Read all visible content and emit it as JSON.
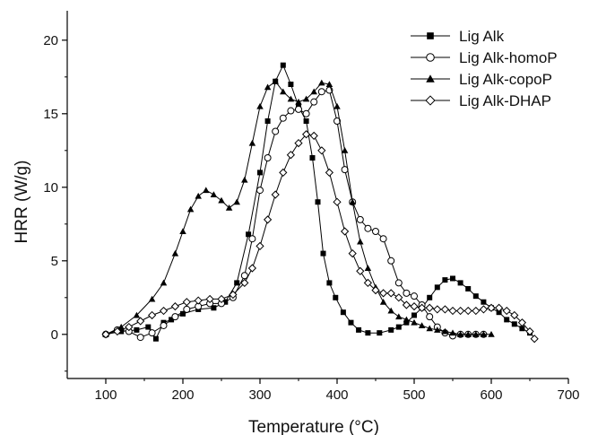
{
  "chart_data": {
    "type": "line",
    "title": "",
    "xlabel": "Temperature (°C)",
    "ylabel": "HRR (W/g)",
    "xlim": [
      50,
      700
    ],
    "ylim": [
      -3,
      22
    ],
    "xticks": [
      100,
      200,
      300,
      400,
      500,
      600,
      700
    ],
    "yticks": [
      0,
      5,
      10,
      15,
      20
    ],
    "grid": false,
    "legend_position": "top-right",
    "series": [
      {
        "name": "Lig Alk",
        "marker": "filled-square",
        "color": "#000000",
        "points": [
          [
            100,
            0
          ],
          [
            120,
            0.2
          ],
          [
            140,
            0.3
          ],
          [
            155,
            0.5
          ],
          [
            165,
            -0.3
          ],
          [
            175,
            0.8
          ],
          [
            185,
            1.0
          ],
          [
            200,
            1.4
          ],
          [
            220,
            1.7
          ],
          [
            240,
            1.8
          ],
          [
            255,
            2.2
          ],
          [
            270,
            3.5
          ],
          [
            285,
            6.8
          ],
          [
            300,
            11.0
          ],
          [
            310,
            14.5
          ],
          [
            320,
            17.2
          ],
          [
            330,
            18.3
          ],
          [
            340,
            17.0
          ],
          [
            350,
            15.5
          ],
          [
            360,
            14.5
          ],
          [
            368,
            12.0
          ],
          [
            375,
            9.0
          ],
          [
            382,
            5.5
          ],
          [
            390,
            3.5
          ],
          [
            398,
            2.5
          ],
          [
            408,
            1.5
          ],
          [
            418,
            0.8
          ],
          [
            428,
            0.3
          ],
          [
            440,
            0.1
          ],
          [
            455,
            0.1
          ],
          [
            470,
            0.3
          ],
          [
            480,
            0.5
          ],
          [
            490,
            0.8
          ],
          [
            500,
            1.3
          ],
          [
            510,
            1.8
          ],
          [
            520,
            2.5
          ],
          [
            530,
            3.2
          ],
          [
            540,
            3.7
          ],
          [
            550,
            3.8
          ],
          [
            560,
            3.5
          ],
          [
            570,
            3.1
          ],
          [
            580,
            2.6
          ],
          [
            590,
            2.2
          ],
          [
            600,
            1.8
          ],
          [
            610,
            1.5
          ],
          [
            620,
            1.0
          ],
          [
            630,
            0.7
          ],
          [
            640,
            0.4
          ],
          [
            650,
            0.1
          ]
        ]
      },
      {
        "name": "Lig Alk-homoP",
        "marker": "open-circle",
        "color": "#000000",
        "points": [
          [
            100,
            0
          ],
          [
            115,
            0.3
          ],
          [
            130,
            0.2
          ],
          [
            145,
            -0.2
          ],
          [
            160,
            0.1
          ],
          [
            175,
            0.6
          ],
          [
            190,
            1.2
          ],
          [
            205,
            1.7
          ],
          [
            220,
            1.9
          ],
          [
            235,
            2.1
          ],
          [
            250,
            2.1
          ],
          [
            265,
            2.5
          ],
          [
            280,
            4.0
          ],
          [
            290,
            6.5
          ],
          [
            300,
            9.8
          ],
          [
            310,
            12.0
          ],
          [
            320,
            13.8
          ],
          [
            330,
            14.7
          ],
          [
            340,
            15.2
          ],
          [
            350,
            15.3
          ],
          [
            360,
            15.0
          ],
          [
            370,
            15.8
          ],
          [
            380,
            16.5
          ],
          [
            390,
            16.6
          ],
          [
            400,
            14.5
          ],
          [
            410,
            11.2
          ],
          [
            420,
            9.0
          ],
          [
            430,
            7.8
          ],
          [
            440,
            7.2
          ],
          [
            450,
            7.0
          ],
          [
            460,
            6.5
          ],
          [
            470,
            5.0
          ],
          [
            480,
            3.5
          ],
          [
            490,
            2.8
          ],
          [
            500,
            2.6
          ],
          [
            510,
            2.0
          ],
          [
            520,
            1.2
          ],
          [
            530,
            0.5
          ],
          [
            540,
            0.1
          ],
          [
            550,
            -0.1
          ],
          [
            560,
            0
          ],
          [
            570,
            0
          ],
          [
            580,
            0
          ],
          [
            590,
            0
          ]
        ]
      },
      {
        "name": "Lig Alk-copoP",
        "marker": "filled-triangle",
        "color": "#000000",
        "points": [
          [
            100,
            0
          ],
          [
            120,
            0.5
          ],
          [
            140,
            1.3
          ],
          [
            160,
            2.4
          ],
          [
            175,
            3.5
          ],
          [
            190,
            5.5
          ],
          [
            200,
            7.0
          ],
          [
            210,
            8.5
          ],
          [
            220,
            9.4
          ],
          [
            230,
            9.8
          ],
          [
            240,
            9.5
          ],
          [
            250,
            9.1
          ],
          [
            260,
            8.6
          ],
          [
            270,
            9.0
          ],
          [
            280,
            10.5
          ],
          [
            290,
            13.0
          ],
          [
            300,
            15.5
          ],
          [
            310,
            16.8
          ],
          [
            320,
            17.2
          ],
          [
            330,
            16.5
          ],
          [
            340,
            16.0
          ],
          [
            350,
            15.8
          ],
          [
            360,
            16.0
          ],
          [
            370,
            16.5
          ],
          [
            380,
            17.1
          ],
          [
            390,
            17.0
          ],
          [
            400,
            15.5
          ],
          [
            410,
            12.5
          ],
          [
            420,
            9.0
          ],
          [
            430,
            6.3
          ],
          [
            440,
            4.5
          ],
          [
            450,
            3.2
          ],
          [
            460,
            2.2
          ],
          [
            470,
            1.6
          ],
          [
            480,
            1.2
          ],
          [
            490,
            1.0
          ],
          [
            500,
            0.8
          ],
          [
            510,
            0.6
          ],
          [
            520,
            0.4
          ],
          [
            530,
            0.3
          ],
          [
            540,
            0.2
          ],
          [
            550,
            0.1
          ],
          [
            560,
            0
          ],
          [
            570,
            0
          ],
          [
            580,
            0
          ],
          [
            590,
            0
          ],
          [
            600,
            0
          ]
        ]
      },
      {
        "name": "Lig Alk-DHAP",
        "marker": "open-diamond",
        "color": "#000000",
        "points": [
          [
            100,
            0
          ],
          [
            115,
            0.2
          ],
          [
            130,
            0.5
          ],
          [
            145,
            0.9
          ],
          [
            160,
            1.3
          ],
          [
            175,
            1.6
          ],
          [
            190,
            1.9
          ],
          [
            205,
            2.2
          ],
          [
            220,
            2.3
          ],
          [
            235,
            2.4
          ],
          [
            250,
            2.4
          ],
          [
            265,
            2.7
          ],
          [
            280,
            3.5
          ],
          [
            290,
            4.5
          ],
          [
            300,
            6.0
          ],
          [
            310,
            7.8
          ],
          [
            320,
            9.5
          ],
          [
            330,
            11.0
          ],
          [
            340,
            12.2
          ],
          [
            350,
            13.0
          ],
          [
            360,
            13.6
          ],
          [
            370,
            13.5
          ],
          [
            380,
            12.5
          ],
          [
            390,
            11.0
          ],
          [
            400,
            9.0
          ],
          [
            410,
            7.0
          ],
          [
            420,
            5.5
          ],
          [
            430,
            4.3
          ],
          [
            440,
            3.5
          ],
          [
            450,
            3.0
          ],
          [
            460,
            2.8
          ],
          [
            470,
            2.8
          ],
          [
            480,
            2.5
          ],
          [
            490,
            2.0
          ],
          [
            500,
            1.9
          ],
          [
            510,
            1.8
          ],
          [
            520,
            1.8
          ],
          [
            530,
            1.7
          ],
          [
            540,
            1.7
          ],
          [
            550,
            1.6
          ],
          [
            560,
            1.6
          ],
          [
            570,
            1.6
          ],
          [
            580,
            1.6
          ],
          [
            590,
            1.7
          ],
          [
            600,
            1.8
          ],
          [
            610,
            1.8
          ],
          [
            620,
            1.6
          ],
          [
            630,
            1.3
          ],
          [
            640,
            0.8
          ],
          [
            650,
            0.2
          ],
          [
            656,
            -0.3
          ]
        ]
      }
    ]
  }
}
